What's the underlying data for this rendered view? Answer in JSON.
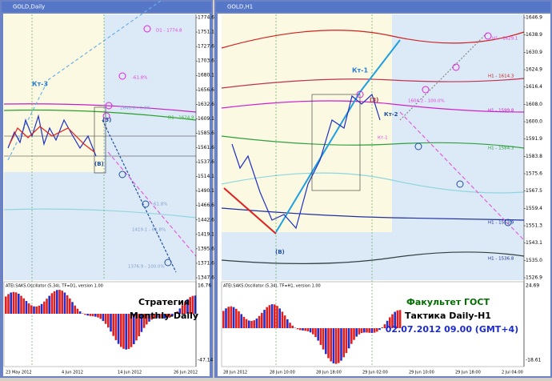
{
  "left_window": {
    "title": "GOLD,Daily",
    "price_labels": [
      "1774.6",
      "1751.1",
      "1727.6",
      "1703.6",
      "1680.1",
      "1656.6",
      "1632.6",
      "1609.1",
      "1585.6",
      "1561.6",
      "1537.6",
      "1514.1",
      "1490.1",
      "1466.6",
      "1442.6",
      "1419.1",
      "1395.6",
      "1371.6",
      "1347.6"
    ],
    "annotations": [
      "Кт-3",
      "D1 - 1774.8",
      "-61.8%",
      "1640.0 - 0.0%",
      "D1 - 1624.9",
      "(3)",
      "(B)",
      "-61.8%",
      "1419.1 - 61.8%",
      "1376.9 - 100.0%"
    ],
    "oscillator": {
      "title": "ATEI.SAKS.Oscillator (5,34), TF=D1, version 1.00",
      "max": "16.76",
      "min": "-47.14"
    },
    "dates": [
      "23 May 2012",
      "4 Jun 2012",
      "14 Jun 2012",
      "26 Jun 2012"
    ],
    "caption": [
      "Стратегия",
      "Monthly-Daily"
    ]
  },
  "right_window": {
    "title": "GOLD,H1",
    "price_labels": [
      "1646.9",
      "1638.9",
      "1630.9",
      "1624.9",
      "1616.4",
      "1608.0",
      "1600.0",
      "1591.9",
      "1583.8",
      "1575.6",
      "1567.5",
      "1559.4",
      "1551.3",
      "1543.1",
      "1535.0",
      "1526.9"
    ],
    "annotations": [
      "Кт-1",
      "Кт-2",
      "Кт-1",
      "(3)",
      "(B)",
      "H1 - 1629.1",
      "H1 - 1614.3",
      "H1 - 1599.8",
      "H1 - 1584.3",
      "H1 - 1553.9",
      "H1 - 1536.8",
      "1604.2 - 100.0%"
    ],
    "oscillator": {
      "title": "ATEI.SAKS.Oscillator (5,34), TF=H1, version 1.00",
      "max": "24.69",
      "min": "-18.61"
    },
    "dates": [
      "28 Jun 2012",
      "28 Jun 10:00",
      "28 Jun 18:00",
      "29 Jun 02:00",
      "29 Jun 10:00",
      "29 Jun 18:00",
      "2 Jul 04:00"
    ],
    "caption": [
      "Факультет ГОСТ",
      "Тактика Daily-H1",
      "02.07.2012  09.00 (GMT+4)"
    ]
  }
}
